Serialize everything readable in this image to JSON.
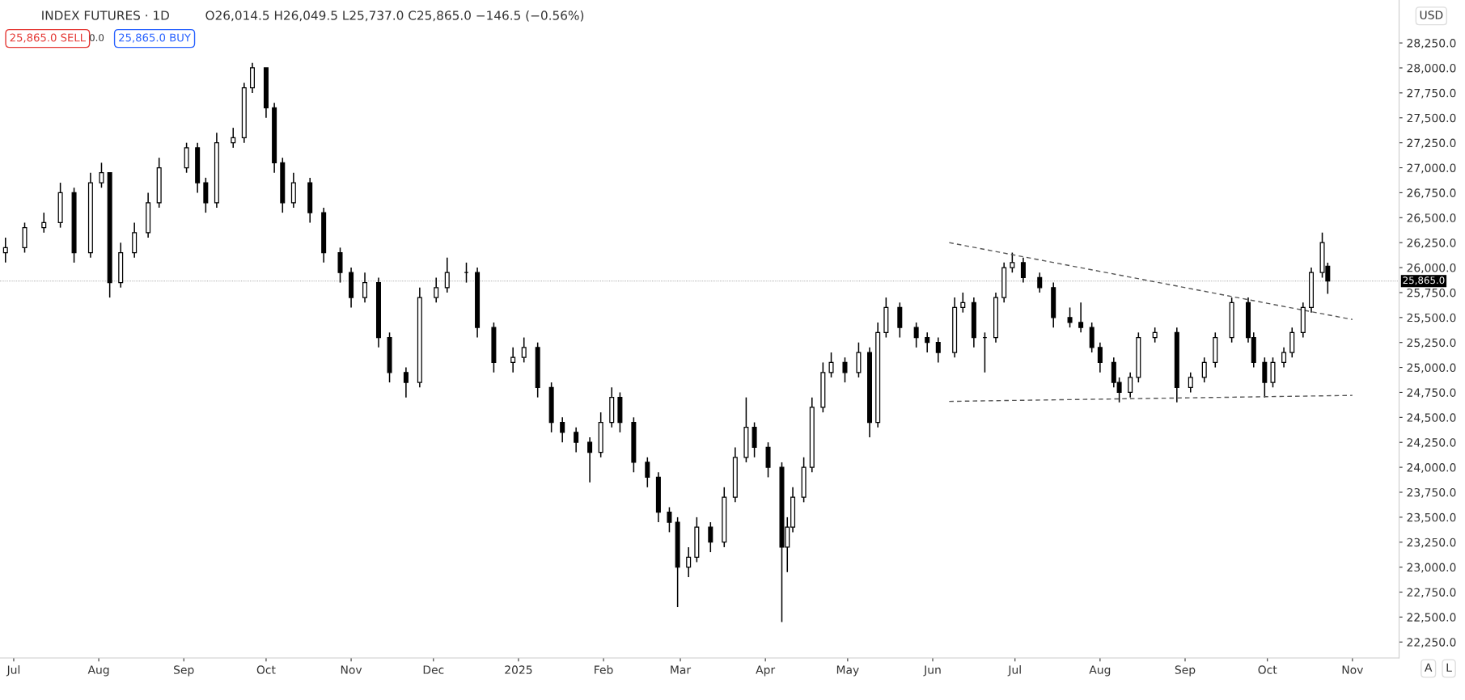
{
  "chart_data": {
    "type": "candlestick",
    "title": "INDEX FUTURES · 1D",
    "annotations": [
      "O26,014.5 H26,049.5 L25,737.0 C25,865.0 −146.5 (−0.56%)",
      "25,865.0 SELL",
      "0.0",
      "25,865.0 BUY",
      "USD",
      "A",
      "L"
    ],
    "ref_lines": [
      {
        "axis": "y",
        "value": 25865,
        "label": "25,865.0",
        "color": "#000000",
        "line_style": "dotted"
      }
    ],
    "x": [
      "2024-06-28",
      "2024-07-05",
      "2024-07-12",
      "2024-07-18",
      "2024-07-23",
      "2024-07-29",
      "2024-08-02",
      "2024-08-05",
      "2024-08-09",
      "2024-08-14",
      "2024-08-19",
      "2024-08-23",
      "2024-09-02",
      "2024-09-06",
      "2024-09-09",
      "2024-09-13",
      "2024-09-19",
      "2024-09-23",
      "2024-09-26",
      "2024-10-01",
      "2024-10-04",
      "2024-10-07",
      "2024-10-11",
      "2024-10-17",
      "2024-10-22",
      "2024-10-28",
      "2024-11-01",
      "2024-11-06",
      "2024-11-11",
      "2024-11-15",
      "2024-11-21",
      "2024-11-26",
      "2024-12-02",
      "2024-12-06",
      "2024-12-13",
      "2024-12-17",
      "2024-12-23",
      "2024-12-30",
      "2025-01-03",
      "2025-01-08",
      "2025-01-13",
      "2025-01-17",
      "2025-01-22",
      "2025-01-27",
      "2025-01-31",
      "2025-02-04",
      "2025-02-07",
      "2025-02-12",
      "2025-02-17",
      "2025-02-21",
      "2025-02-25",
      "2025-02-28",
      "2025-03-04",
      "2025-03-07",
      "2025-03-12",
      "2025-03-17",
      "2025-03-21",
      "2025-03-25",
      "2025-03-28",
      "2025-04-02",
      "2025-04-07",
      "2025-04-09",
      "2025-04-11",
      "2025-04-15",
      "2025-04-18",
      "2025-04-22",
      "2025-04-25",
      "2025-04-30",
      "2025-05-05",
      "2025-05-09",
      "2025-05-12",
      "2025-05-15",
      "2025-05-20",
      "2025-05-26",
      "2025-05-30",
      "2025-06-03",
      "2025-06-09",
      "2025-06-12",
      "2025-06-16",
      "2025-06-20",
      "2025-06-24",
      "2025-06-27",
      "2025-06-30",
      "2025-07-04",
      "2025-07-10",
      "2025-07-15",
      "2025-07-21",
      "2025-07-25",
      "2025-07-29",
      "2025-08-01",
      "2025-08-06",
      "2025-08-08",
      "2025-08-12",
      "2025-08-15",
      "2025-08-21",
      "2025-08-29",
      "2025-09-03",
      "2025-09-08",
      "2025-09-12",
      "2025-09-18",
      "2025-09-24",
      "2025-09-26",
      "2025-09-30",
      "2025-10-03",
      "2025-10-07",
      "2025-10-10",
      "2025-10-14",
      "2025-10-17",
      "2025-10-21",
      "2025-10-23"
    ],
    "ohlc": [
      [
        26150,
        26300,
        26050,
        26200
      ],
      [
        26200,
        26450,
        26150,
        26400
      ],
      [
        26400,
        26550,
        26350,
        26450
      ],
      [
        26450,
        26850,
        26400,
        26750
      ],
      [
        26750,
        26800,
        26050,
        26150
      ],
      [
        26150,
        26950,
        26100,
        26850
      ],
      [
        26850,
        27050,
        26800,
        26950
      ],
      [
        26950,
        26950,
        25700,
        25850
      ],
      [
        25850,
        26250,
        25800,
        26150
      ],
      [
        26150,
        26450,
        26100,
        26350
      ],
      [
        26350,
        26750,
        26300,
        26650
      ],
      [
        26650,
        27100,
        26600,
        27000
      ],
      [
        27000,
        27250,
        26950,
        27200
      ],
      [
        27200,
        27250,
        26750,
        26850
      ],
      [
        26850,
        26900,
        26550,
        26650
      ],
      [
        26650,
        27350,
        26600,
        27250
      ],
      [
        27250,
        27400,
        27200,
        27300
      ],
      [
        27300,
        27850,
        27250,
        27800
      ],
      [
        27800,
        28050,
        27750,
        28000
      ],
      [
        28000,
        28000,
        27500,
        27600
      ],
      [
        27600,
        27650,
        26950,
        27050
      ],
      [
        27050,
        27100,
        26550,
        26650
      ],
      [
        26650,
        26950,
        26600,
        26850
      ],
      [
        26850,
        26900,
        26450,
        26550
      ],
      [
        26550,
        26600,
        26050,
        26150
      ],
      [
        26150,
        26200,
        25850,
        25950
      ],
      [
        25950,
        26000,
        25600,
        25700
      ],
      [
        25700,
        25950,
        25650,
        25850
      ],
      [
        25850,
        25900,
        25200,
        25300
      ],
      [
        25300,
        25350,
        24850,
        24950
      ],
      [
        24950,
        25000,
        24700,
        24850
      ],
      [
        24850,
        25800,
        24800,
        25700
      ],
      [
        25700,
        25900,
        25650,
        25800
      ],
      [
        25800,
        26100,
        25750,
        25950
      ],
      [
        25950,
        26050,
        25850,
        25950
      ],
      [
        25950,
        26000,
        25300,
        25400
      ],
      [
        25400,
        25450,
        24950,
        25050
      ],
      [
        25050,
        25200,
        24950,
        25100
      ],
      [
        25100,
        25300,
        25050,
        25200
      ],
      [
        25200,
        25250,
        24700,
        24800
      ],
      [
        24800,
        24850,
        24350,
        24450
      ],
      [
        24450,
        24500,
        24250,
        24350
      ],
      [
        24350,
        24400,
        24150,
        24250
      ],
      [
        24250,
        24300,
        23850,
        24150
      ],
      [
        24150,
        24550,
        24100,
        24450
      ],
      [
        24450,
        24800,
        24400,
        24700
      ],
      [
        24700,
        24750,
        24350,
        24450
      ],
      [
        24450,
        24500,
        23950,
        24050
      ],
      [
        24050,
        24100,
        23800,
        23900
      ],
      [
        23900,
        23950,
        23450,
        23550
      ],
      [
        23550,
        23600,
        23350,
        23450
      ],
      [
        23450,
        23500,
        22600,
        23000
      ],
      [
        23000,
        23200,
        22900,
        23100
      ],
      [
        23100,
        23500,
        23050,
        23400
      ],
      [
        23400,
        23450,
        23150,
        23250
      ],
      [
        23250,
        23800,
        23200,
        23700
      ],
      [
        23700,
        24200,
        23650,
        24100
      ],
      [
        24100,
        24700,
        24050,
        24400
      ],
      [
        24400,
        24450,
        24100,
        24200
      ],
      [
        24200,
        24250,
        23900,
        24000
      ],
      [
        24000,
        24050,
        22450,
        23200
      ],
      [
        23200,
        23500,
        22950,
        23400
      ],
      [
        23400,
        23800,
        23350,
        23700
      ],
      [
        23700,
        24100,
        23650,
        24000
      ],
      [
        24000,
        24700,
        23950,
        24600
      ],
      [
        24600,
        25050,
        24550,
        24950
      ],
      [
        24950,
        25150,
        24900,
        25050
      ],
      [
        25050,
        25100,
        24850,
        24950
      ],
      [
        24950,
        25250,
        24900,
        25150
      ],
      [
        25150,
        25200,
        24300,
        24450
      ],
      [
        24450,
        25450,
        24400,
        25350
      ],
      [
        25350,
        25700,
        25300,
        25600
      ],
      [
        25600,
        25650,
        25300,
        25400
      ],
      [
        25400,
        25450,
        25200,
        25300
      ],
      [
        25300,
        25350,
        25150,
        25250
      ],
      [
        25250,
        25300,
        25050,
        25150
      ],
      [
        25150,
        25700,
        25100,
        25600
      ],
      [
        25600,
        25750,
        25550,
        25650
      ],
      [
        25650,
        25700,
        25200,
        25300
      ],
      [
        25300,
        25350,
        24950,
        25300
      ],
      [
        25300,
        25750,
        25250,
        25700
      ],
      [
        25700,
        26050,
        25650,
        26000
      ],
      [
        26000,
        26150,
        25950,
        26050
      ],
      [
        26050,
        26100,
        25850,
        25900
      ],
      [
        25900,
        25950,
        25750,
        25800
      ],
      [
        25800,
        25850,
        25400,
        25500
      ],
      [
        25500,
        25600,
        25400,
        25450
      ],
      [
        25450,
        25650,
        25350,
        25400
      ],
      [
        25400,
        25450,
        25150,
        25200
      ],
      [
        25200,
        25250,
        24950,
        25050
      ],
      [
        25050,
        25100,
        24800,
        24850
      ],
      [
        24850,
        24900,
        24650,
        24750
      ],
      [
        24750,
        24950,
        24700,
        24900
      ],
      [
        24900,
        25350,
        24850,
        25300
      ],
      [
        25300,
        25400,
        25250,
        25350
      ],
      [
        25350,
        25400,
        24650,
        24800
      ],
      [
        24800,
        24950,
        24750,
        24900
      ],
      [
        24900,
        25100,
        24850,
        25050
      ],
      [
        25050,
        25350,
        25000,
        25300
      ],
      [
        25300,
        25700,
        25250,
        25650
      ],
      [
        25650,
        25700,
        25250,
        25300
      ],
      [
        25300,
        25350,
        25000,
        25050
      ],
      [
        25050,
        25100,
        24700,
        24850
      ],
      [
        24850,
        25100,
        24800,
        25050
      ],
      [
        25050,
        25200,
        25000,
        25150
      ],
      [
        25150,
        25400,
        25100,
        25350
      ],
      [
        25350,
        25650,
        25300,
        25600
      ],
      [
        25600,
        26000,
        25550,
        25950
      ],
      [
        25950,
        26350,
        25900,
        26250
      ],
      [
        26014.5,
        26049.5,
        25737.0,
        25865.0
      ]
    ],
    "color": "#000000",
    "series": [
      {
        "type": "line",
        "x": [
          "2025-06-07",
          "2025-11-01"
        ],
        "values": [
          26250,
          25480
        ],
        "color": "#555555",
        "line_style": "dashed"
      },
      {
        "type": "line",
        "x": [
          "2025-06-07",
          "2025-11-01"
        ],
        "values": [
          24660,
          24720
        ],
        "color": "#555555",
        "line_style": "dashed"
      }
    ],
    "xlim": [
      "2024-06-26",
      "2025-11-18"
    ],
    "xticks": [
      {
        "value": "2024-07-01",
        "label": "Jul"
      },
      {
        "value": "2024-08-01",
        "label": "Aug"
      },
      {
        "value": "2024-09-01",
        "label": "Sep"
      },
      {
        "value": "2024-10-01",
        "label": "Oct"
      },
      {
        "value": "2024-11-01",
        "label": "Nov"
      },
      {
        "value": "2024-12-01",
        "label": "Dec"
      },
      {
        "value": "2025-01-01",
        "label": "2025"
      },
      {
        "value": "2025-02-01",
        "label": "Feb"
      },
      {
        "value": "2025-03-01",
        "label": "Mar"
      },
      {
        "value": "2025-04-01",
        "label": "Apr"
      },
      {
        "value": "2025-05-01",
        "label": "May"
      },
      {
        "value": "2025-06-01",
        "label": "Jun"
      },
      {
        "value": "2025-07-01",
        "label": "Jul"
      },
      {
        "value": "2025-08-01",
        "label": "Aug"
      },
      {
        "value": "2025-09-01",
        "label": "Sep"
      },
      {
        "value": "2025-10-01",
        "label": "Oct"
      },
      {
        "value": "2025-11-01",
        "label": "Nov"
      }
    ],
    "ylim": [
      22090,
      28680
    ],
    "yticks": [
      {
        "value": 22250,
        "label": "22,250.0"
      },
      {
        "value": 22500,
        "label": "22,500.0"
      },
      {
        "value": 22750,
        "label": "22,750.0"
      },
      {
        "value": 23000,
        "label": "23,000.0"
      },
      {
        "value": 23250,
        "label": "23,250.0"
      },
      {
        "value": 23500,
        "label": "23,500.0"
      },
      {
        "value": 23750,
        "label": "23,750.0"
      },
      {
        "value": 24000,
        "label": "24,000.0"
      },
      {
        "value": 24250,
        "label": "24,250.0"
      },
      {
        "value": 24500,
        "label": "24,500.0"
      },
      {
        "value": 24750,
        "label": "24,750.0"
      },
      {
        "value": 25000,
        "label": "25,000.0"
      },
      {
        "value": 25250,
        "label": "25,250.0"
      },
      {
        "value": 25500,
        "label": "25,500.0"
      },
      {
        "value": 25750,
        "label": "25,750.0"
      },
      {
        "value": 26000,
        "label": "26,000.0"
      },
      {
        "value": 26250,
        "label": "26,250.0"
      },
      {
        "value": 26500,
        "label": "26,500.0"
      },
      {
        "value": 26750,
        "label": "26,750.0"
      },
      {
        "value": 27000,
        "label": "27,000.0"
      },
      {
        "value": 27250,
        "label": "27,250.0"
      },
      {
        "value": 27500,
        "label": "27,500.0"
      },
      {
        "value": 27750,
        "label": "27,750.0"
      },
      {
        "value": 28000,
        "label": "28,000.0"
      },
      {
        "value": 28250,
        "label": "28,250.0"
      }
    ],
    "grid": false,
    "legend": false
  }
}
